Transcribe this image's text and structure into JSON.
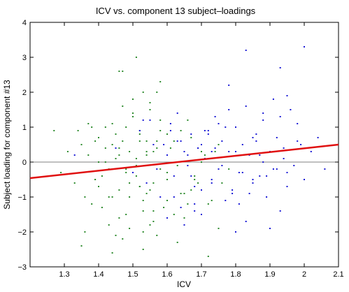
{
  "chart_data": {
    "type": "scatter",
    "title": "ICV vs. component 13 subject–loadings",
    "xlabel": "ICV",
    "ylabel": "Subject loading for component #13",
    "xlim": [
      1.2,
      2.1
    ],
    "ylim": [
      -3,
      4
    ],
    "xticks": [
      "1.3",
      "1.4",
      "1.5",
      "1.6",
      "1.7",
      "1.8",
      "1.9",
      "2",
      "2.1"
    ],
    "yticks": [
      "−3",
      "−2",
      "−1",
      "0",
      "1",
      "2",
      "3",
      "4"
    ],
    "grid": false,
    "zero_line": 0,
    "colors": {
      "green_series": "#2e8b2e",
      "blue_series": "#1c1cd6",
      "fit_line": "#e01010",
      "zero_line": "#808080"
    },
    "fit_line": {
      "x": [
        1.2,
        2.1
      ],
      "y": [
        -0.46,
        0.5
      ]
    },
    "series": [
      {
        "color": "#2e8b2e",
        "x": [
          1.27,
          1.29,
          1.31,
          1.33,
          1.35,
          1.36,
          1.37,
          1.38,
          1.39,
          1.4,
          1.41,
          1.42,
          1.43,
          1.44,
          1.45,
          1.46,
          1.47,
          1.48,
          1.49,
          1.5,
          1.51,
          1.52,
          1.53,
          1.54,
          1.55,
          1.56,
          1.57,
          1.58,
          1.36,
          1.38,
          1.4,
          1.42,
          1.44,
          1.46,
          1.48,
          1.5,
          1.52,
          1.54,
          1.56,
          1.58,
          1.6,
          1.37,
          1.39,
          1.41,
          1.43,
          1.45,
          1.47,
          1.49,
          1.51,
          1.53,
          1.55,
          1.57,
          1.59,
          1.61,
          1.63,
          1.65,
          1.67,
          1.69,
          1.71,
          1.73,
          1.75,
          1.4,
          1.42,
          1.44,
          1.46,
          1.48,
          1.5,
          1.52,
          1.54,
          1.56,
          1.58,
          1.6,
          1.62,
          1.64,
          1.66,
          1.68,
          1.7,
          1.72,
          1.74,
          1.76,
          1.78,
          1.35,
          1.45,
          1.47,
          1.49,
          1.51,
          1.53,
          1.55,
          1.57,
          1.62,
          1.64,
          1.66,
          1.68,
          1.43,
          1.46,
          1.5,
          1.52,
          1.54,
          1.56,
          1.6,
          1.65,
          1.7,
          1.72,
          1.48,
          1.53,
          1.58,
          1.63,
          1.67,
          1.34,
          1.39,
          1.44,
          1.49,
          1.55,
          1.6,
          1.75,
          1.47,
          1.52,
          1.57,
          1.46,
          1.53,
          1.51
        ],
        "y": [
          0.9,
          -0.3,
          0.3,
          -0.6,
          0.5,
          -1.0,
          0.2,
          1.0,
          -0.5,
          0.7,
          -1.3,
          0.4,
          -0.2,
          1.1,
          0.1,
          -0.8,
          0.6,
          -1.5,
          0.3,
          1.3,
          -0.4,
          0.8,
          -1.1,
          0.2,
          1.5,
          -0.6,
          0.4,
          -0.2,
          -2.0,
          -1.2,
          -0.7,
          0.0,
          0.5,
          -1.6,
          1.0,
          -0.3,
          0.9,
          -0.9,
          0.3,
          1.2,
          -0.5,
          1.1,
          0.6,
          -0.4,
          -1.8,
          0.8,
          1.6,
          -1.0,
          0.1,
          2.0,
          -0.8,
          0.6,
          -1.3,
          0.4,
          -0.1,
          -1.6,
          0.7,
          -0.6,
          0.2,
          -1.1,
          0.5,
          0.0,
          1.0,
          -1.0,
          0.4,
          -0.2,
          1.8,
          -0.7,
          0.3,
          -1.4,
          0.9,
          -0.3,
          0.6,
          -0.9,
          1.2,
          -0.5,
          0.0,
          -1.2,
          0.3,
          -0.6,
          -0.2,
          -2.4,
          -2.1,
          2.6,
          -1.9,
          -0.1,
          -2.0,
          1.7,
          -2.1,
          -1.5,
          0.9,
          -1.2,
          -0.4,
          -1.0,
          0.2,
          1.4,
          -0.7,
          0.6,
          -1.7,
          0.8,
          -0.9,
          0.3,
          -2.7,
          -0.3,
          -1.4,
          2.3,
          -2.3,
          -0.8,
          0.9,
          -0.5,
          -2.6,
          -0.6,
          -1.8,
          -1.1,
          -1.9,
          -2.2,
          0.6,
          2.0,
          2.6,
          -2.5,
          3.0
        ]
      },
      {
        "color": "#1c1cd6",
        "x": [
          1.33,
          1.45,
          1.5,
          1.52,
          1.54,
          1.56,
          1.58,
          1.6,
          1.61,
          1.62,
          1.63,
          1.64,
          1.65,
          1.66,
          1.67,
          1.68,
          1.69,
          1.7,
          1.71,
          1.72,
          1.73,
          1.74,
          1.75,
          1.76,
          1.77,
          1.78,
          1.79,
          1.8,
          1.81,
          1.82,
          1.83,
          1.84,
          1.85,
          1.86,
          1.87,
          1.88,
          1.89,
          1.9,
          1.91,
          1.92,
          1.93,
          1.94,
          1.95,
          1.96,
          1.97,
          1.98,
          2.0,
          2.02,
          2.04,
          2.06,
          1.55,
          1.59,
          1.63,
          1.67,
          1.71,
          1.75,
          1.79,
          1.83,
          1.87,
          1.91,
          1.95,
          1.99,
          1.57,
          1.61,
          1.65,
          1.69,
          1.73,
          1.77,
          1.81,
          1.85,
          1.89,
          1.93,
          1.62,
          1.66,
          1.7,
          1.74,
          1.78,
          1.82,
          1.86,
          1.9,
          1.94,
          1.64,
          1.68,
          1.72,
          1.76,
          1.8,
          1.84,
          1.88,
          1.92,
          1.53,
          1.6,
          1.7,
          1.8,
          1.85,
          1.95,
          1.68,
          1.78,
          1.88,
          1.98,
          2.0,
          1.93,
          1.83,
          1.73
        ],
        "y": [
          0.2,
          0.4,
          -0.3,
          0.9,
          -0.6,
          0.5,
          -1.0,
          0.2,
          1.1,
          -0.4,
          0.6,
          -1.3,
          0.3,
          -0.1,
          0.8,
          -0.7,
          0.4,
          -1.5,
          0.1,
          0.9,
          -0.5,
          1.3,
          -0.2,
          0.6,
          -1.1,
          0.3,
          -0.8,
          1.0,
          -0.3,
          0.5,
          -1.7,
          0.2,
          -0.6,
          0.8,
          -0.4,
          1.2,
          -1.0,
          0.3,
          -0.2,
          0.7,
          -1.4,
          0.4,
          -0.7,
          1.5,
          -0.1,
          0.6,
          -0.5,
          0.3,
          0.7,
          -0.2,
          1.2,
          0.5,
          1.4,
          -0.4,
          0.9,
          1.1,
          -0.9,
          1.6,
          0.2,
          1.8,
          -0.3,
          0.5,
          -0.2,
          0.9,
          -1.8,
          0.4,
          -0.6,
          1.0,
          -1.2,
          0.7,
          -0.4,
          1.3,
          -1.0,
          0.2,
          -0.8,
          0.4,
          1.5,
          -0.3,
          0.6,
          -1.9,
          0.1,
          0.6,
          -1.4,
          0.8,
          -0.1,
          0.3,
          -0.9,
          1.4,
          -0.2,
          1.2,
          -1.6,
          0.5,
          -2.0,
          -0.5,
          1.9,
          -1.2,
          2.2,
          0.0,
          1.1,
          3.3,
          2.7,
          3.2,
          0.3
        ]
      }
    ]
  }
}
